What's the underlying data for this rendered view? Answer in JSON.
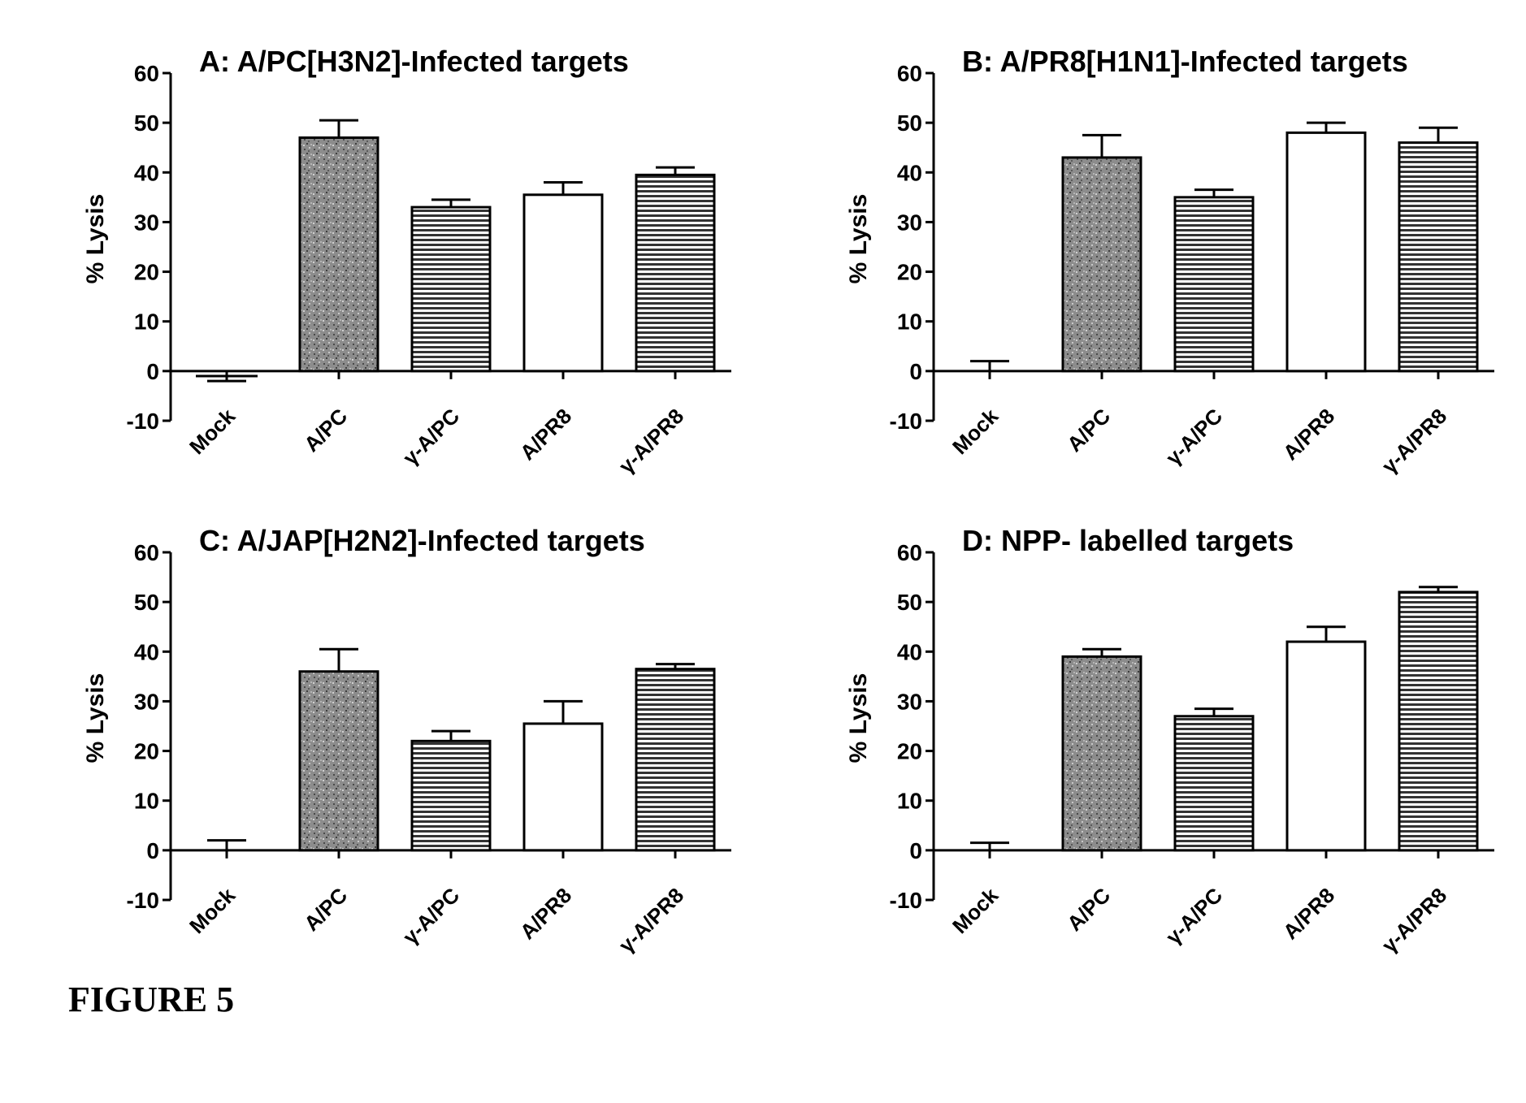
{
  "figure_caption": "FIGURE 5",
  "chart_data": [
    {
      "type": "bar",
      "title": "A: A/PC[H3N2]-Infected targets",
      "ylabel": "% Lysis",
      "xlabel": "",
      "ylim": [
        -10,
        60
      ],
      "yticks": [
        -10,
        0,
        10,
        20,
        30,
        40,
        50,
        60
      ],
      "categories": [
        "Mock",
        "A/PC",
        "γ-A/PC",
        "A/PR8",
        "γ-A/PR8"
      ],
      "values": [
        -1,
        47,
        33,
        35.5,
        39.5
      ],
      "errors": [
        1,
        3.5,
        1.5,
        2.5,
        1.5
      ],
      "fills": [
        "none",
        "stipple",
        "hatch",
        "white",
        "hatch"
      ]
    },
    {
      "type": "bar",
      "title": "B: A/PR8[H1N1]-Infected targets",
      "ylabel": "% Lysis",
      "xlabel": "",
      "ylim": [
        -10,
        60
      ],
      "yticks": [
        -10,
        0,
        10,
        20,
        30,
        40,
        50,
        60
      ],
      "categories": [
        "Mock",
        "A/PC",
        "γ-A/PC",
        "A/PR8",
        "γ-A/PR8"
      ],
      "values": [
        0,
        43,
        35,
        48,
        46
      ],
      "errors": [
        2,
        4.5,
        1.5,
        2,
        3
      ],
      "fills": [
        "none",
        "stipple",
        "hatch",
        "white",
        "hatch"
      ]
    },
    {
      "type": "bar",
      "title": "C: A/JAP[H2N2]-Infected targets",
      "ylabel": "% Lysis",
      "xlabel": "",
      "ylim": [
        -10,
        60
      ],
      "yticks": [
        -10,
        0,
        10,
        20,
        30,
        40,
        50,
        60
      ],
      "categories": [
        "Mock",
        "A/PC",
        "γ-A/PC",
        "A/PR8",
        "γ-A/PR8"
      ],
      "values": [
        0,
        36,
        22,
        25.5,
        36.5
      ],
      "errors": [
        2,
        4.5,
        2,
        4.5,
        1
      ],
      "fills": [
        "none",
        "stipple",
        "hatch",
        "white",
        "hatch"
      ]
    },
    {
      "type": "bar",
      "title": "D: NPP- labelled targets",
      "ylabel": "% Lysis",
      "xlabel": "",
      "ylim": [
        -10,
        60
      ],
      "yticks": [
        -10,
        0,
        10,
        20,
        30,
        40,
        50,
        60
      ],
      "categories": [
        "Mock",
        "A/PC",
        "γ-A/PC",
        "A/PR8",
        "γ-A/PR8"
      ],
      "values": [
        0,
        39,
        27,
        42,
        52
      ],
      "errors": [
        1.5,
        1.5,
        1.5,
        3,
        1
      ],
      "fills": [
        "none",
        "stipple",
        "hatch",
        "white",
        "hatch"
      ]
    }
  ]
}
